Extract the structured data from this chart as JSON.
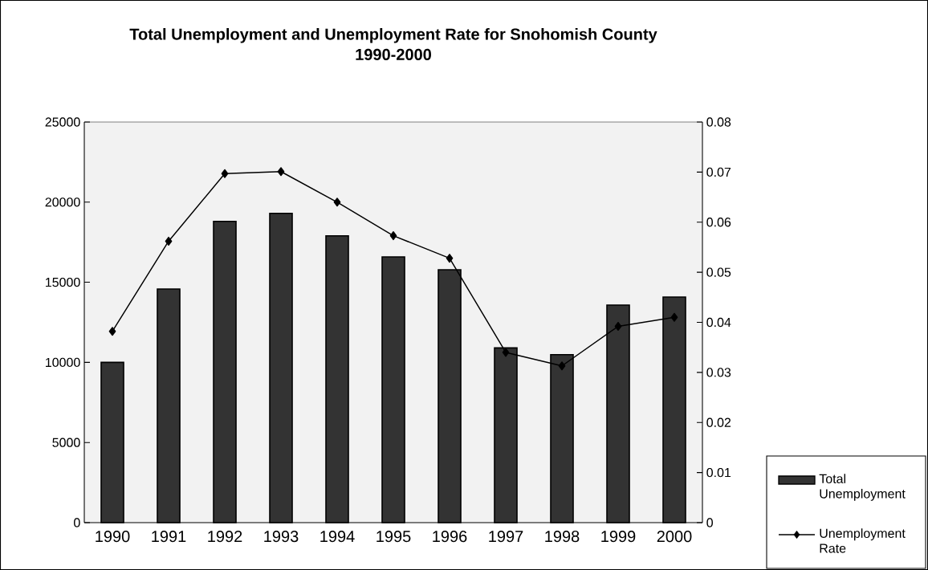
{
  "chart_data": {
    "type": "bar",
    "title": "Total Unemployment and Unemployment Rate for Snohomish County",
    "subtitle": "1990-2000",
    "categories": [
      "1990",
      "1991",
      "1992",
      "1993",
      "1994",
      "1995",
      "1996",
      "1997",
      "1998",
      "1999",
      "2000"
    ],
    "series": [
      {
        "name": "Total Unemployment",
        "color": "#333333",
        "values": [
          10000,
          14580,
          18800,
          19300,
          17900,
          16580,
          15780,
          10900,
          10480,
          13580,
          14080
        ]
      },
      {
        "name": "Unemployment Rate",
        "type": "line",
        "axis": "y2",
        "color": "#000000",
        "marker": "diamond",
        "line_style": "solid",
        "values": [
          0.0382,
          0.0562,
          0.0697,
          0.0701,
          0.064,
          0.0573,
          0.0528,
          0.034,
          0.0313,
          0.0392,
          0.041
        ]
      }
    ],
    "ylim": [
      0,
      25000
    ],
    "yticks": [
      0,
      5000,
      10000,
      15000,
      20000,
      25000
    ],
    "y2lim": [
      0,
      0.08
    ],
    "y2ticks": [
      0,
      0.01,
      0.02,
      0.03,
      0.04,
      0.05,
      0.06,
      0.07,
      0.08
    ],
    "legend": "bottom right"
  }
}
